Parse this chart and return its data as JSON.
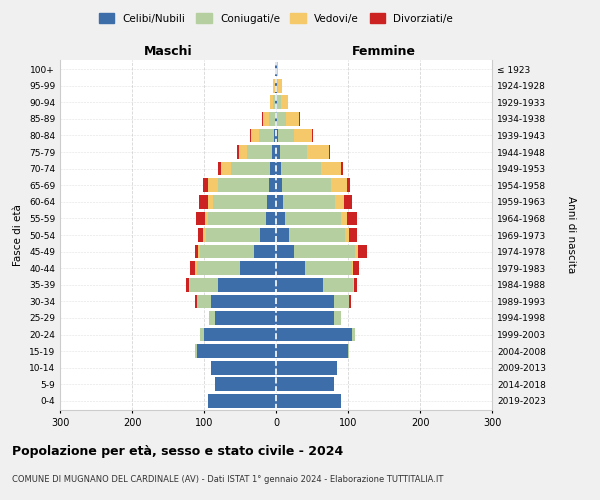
{
  "age_groups": [
    "0-4",
    "5-9",
    "10-14",
    "15-19",
    "20-24",
    "25-29",
    "30-34",
    "35-39",
    "40-44",
    "45-49",
    "50-54",
    "55-59",
    "60-64",
    "65-69",
    "70-74",
    "75-79",
    "80-84",
    "85-89",
    "90-94",
    "95-99",
    "100+"
  ],
  "birth_years": [
    "2019-2023",
    "2014-2018",
    "2009-2013",
    "2004-2008",
    "1999-2003",
    "1994-1998",
    "1989-1993",
    "1984-1988",
    "1979-1983",
    "1974-1978",
    "1969-1973",
    "1964-1968",
    "1959-1963",
    "1954-1958",
    "1949-1953",
    "1944-1948",
    "1939-1943",
    "1934-1938",
    "1929-1933",
    "1924-1928",
    "≤ 1923"
  ],
  "colors": {
    "celibi": "#3d6eaa",
    "coniugati": "#b5cfa0",
    "vedovi": "#f5c96a",
    "divorziati": "#cc2222"
  },
  "males": {
    "celibi": [
      95,
      85,
      90,
      110,
      100,
      85,
      90,
      80,
      50,
      30,
      22,
      14,
      12,
      10,
      8,
      5,
      3,
      2,
      1,
      1,
      1
    ],
    "coniugati": [
      0,
      0,
      0,
      2,
      5,
      8,
      20,
      40,
      60,
      75,
      75,
      80,
      75,
      70,
      55,
      35,
      20,
      8,
      3,
      1,
      0
    ],
    "vedovi": [
      0,
      0,
      0,
      0,
      0,
      0,
      0,
      1,
      2,
      3,
      4,
      5,
      8,
      14,
      14,
      12,
      12,
      8,
      4,
      2,
      1
    ],
    "divorziati": [
      0,
      0,
      0,
      0,
      0,
      0,
      3,
      4,
      8,
      5,
      8,
      12,
      12,
      8,
      3,
      2,
      1,
      1,
      0,
      0,
      0
    ]
  },
  "females": {
    "celibi": [
      90,
      80,
      85,
      100,
      105,
      80,
      80,
      65,
      40,
      25,
      18,
      12,
      10,
      8,
      7,
      5,
      3,
      2,
      2,
      1,
      1
    ],
    "coniugati": [
      0,
      0,
      0,
      2,
      5,
      10,
      22,
      42,
      65,
      85,
      78,
      78,
      72,
      68,
      55,
      38,
      22,
      12,
      5,
      2,
      0
    ],
    "vedovi": [
      0,
      0,
      0,
      0,
      0,
      0,
      0,
      1,
      2,
      4,
      5,
      8,
      12,
      22,
      28,
      30,
      25,
      18,
      10,
      5,
      2
    ],
    "divorziati": [
      0,
      0,
      0,
      0,
      0,
      0,
      2,
      4,
      8,
      12,
      12,
      14,
      12,
      5,
      3,
      2,
      2,
      1,
      0,
      0,
      0
    ]
  },
  "title": "Popolazione per età, sesso e stato civile - 2024",
  "subtitle": "COMUNE DI MUGNANO DEL CARDINALE (AV) - Dati ISTAT 1° gennaio 2024 - Elaborazione TUTTITALIA.IT",
  "xlabel_left": "Maschi",
  "xlabel_right": "Femmine",
  "ylabel_left": "Fasce di età",
  "ylabel_right": "Anni di nascita",
  "xlim": 300,
  "legend_labels": [
    "Celibi/Nubili",
    "Coniugati/e",
    "Vedovi/e",
    "Divorziati/e"
  ],
  "bg_color": "#f0f0f0",
  "plot_bg_color": "#ffffff",
  "grid_color": "#cccccc"
}
